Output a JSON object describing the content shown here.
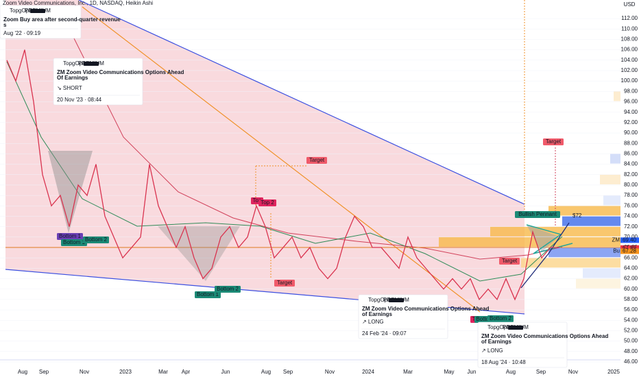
{
  "header": {
    "symbol": "Zoom Video Communications, Inc., 1D, NASDAQ, Heikin Ashi",
    "currency": "USD"
  },
  "price_axis": {
    "ylim": [
      45,
      115
    ],
    "yticks": [
      {
        "value": 46,
        "label": "46.00"
      },
      {
        "value": 48,
        "label": "48.00"
      },
      {
        "value": 50,
        "label": "50.00"
      },
      {
        "value": 52,
        "label": "52.00"
      },
      {
        "value": 54,
        "label": "54.00"
      },
      {
        "value": 56,
        "label": "56.00"
      },
      {
        "value": 58,
        "label": "58.00"
      },
      {
        "value": 60,
        "label": "60.00"
      },
      {
        "value": 62,
        "label": "62.00"
      },
      {
        "value": 64,
        "label": "64.00"
      },
      {
        "value": 66,
        "label": "66.00"
      },
      {
        "value": 68,
        "label": "68.00"
      },
      {
        "value": 70,
        "label": "70.00"
      },
      {
        "value": 72,
        "label": "72.00"
      },
      {
        "value": 74,
        "label": "74.00"
      },
      {
        "value": 76,
        "label": "76.00"
      },
      {
        "value": 78,
        "label": "78.00"
      },
      {
        "value": 80,
        "label": "80.00"
      },
      {
        "value": 82,
        "label": "82.00"
      },
      {
        "value": 84,
        "label": "84.00"
      },
      {
        "value": 86,
        "label": "86.00"
      },
      {
        "value": 88,
        "label": "88.00"
      },
      {
        "value": 90,
        "label": "90.00"
      },
      {
        "value": 92,
        "label": "92.00"
      },
      {
        "value": 94,
        "label": "94.00"
      },
      {
        "value": 96,
        "label": "96.00"
      },
      {
        "value": 98,
        "label": "98.00"
      },
      {
        "value": 100,
        "label": "100.00"
      },
      {
        "value": 102,
        "label": "102.00"
      },
      {
        "value": 104,
        "label": "104.00"
      },
      {
        "value": 106,
        "label": "106.00"
      },
      {
        "value": 108,
        "label": "108.00"
      },
      {
        "value": 110,
        "label": "110.00"
      },
      {
        "value": 112,
        "label": "112.00"
      }
    ]
  },
  "time_axis": {
    "labels": [
      "Aug",
      "Sep",
      "Nov",
      "2023",
      "Mar",
      "Apr",
      "Jun",
      "Aug",
      "Sep",
      "Nov",
      "2024",
      "Mar",
      "May",
      "Jun",
      "Aug",
      "Sep",
      "Nov",
      "2025"
    ]
  },
  "price": {
    "closes": [
      104,
      100,
      106,
      96,
      82,
      76,
      78,
      72,
      80,
      78,
      84,
      74,
      70,
      66,
      68,
      70,
      84,
      76,
      72,
      68,
      72,
      66,
      62,
      64,
      70,
      72,
      68,
      70,
      76,
      72,
      66,
      68,
      70,
      66,
      68,
      64,
      62,
      64,
      70,
      74,
      72,
      68,
      68,
      66,
      64,
      70,
      66,
      64,
      62,
      60,
      62,
      60,
      62,
      58,
      60,
      58,
      62,
      58,
      62,
      71,
      66,
      68,
      68
    ]
  },
  "price_tags": [
    {
      "text": "ZM",
      "value": {
        "value": 69.4,
        "label": "69.40"
      }
    },
    {
      "text": "",
      "value": {
        "value": 67.89,
        "label": "67.89"
      }
    },
    {
      "text": "Bu",
      "value": {
        "value": 67.28,
        "label": "67.28"
      }
    }
  ],
  "labels": {
    "bottom1_a": "Bottom 1",
    "bottom1_b": "Bottom 1",
    "bottom2_a": "Bottom 2",
    "top1": "Top",
    "top2": "Top 2",
    "target1": "Target",
    "target2": "Target",
    "bottom1_c": "Bottom 1",
    "bottom2_c": "Bottom 2",
    "target3": "Target",
    "target4": "Target",
    "pennant": "Bullish Pennant",
    "price_target": "$72",
    "top3": "Top",
    "bottom3": "Bottom",
    "bottom2_d": "Bottom 2"
  },
  "cards": [
    {
      "author": "TopgOptions",
      "badge": "PREMIUM",
      "title_lines": [
        "Zoom Buy area after second-quarter revenue",
        "s"
      ],
      "signal": "",
      "date": "Aug '22 · 09:19"
    },
    {
      "author": "TopgOptions",
      "badge": "PREMIUM",
      "title_lines": [
        "ZM Zoom Video Communications Options Ahead",
        "Of Earnings"
      ],
      "signal": "↘ SHORT",
      "date": "20 Nov '23 · 08:44"
    },
    {
      "author": "TopgOptions",
      "badge": "PREMIUM",
      "title_lines": [
        "ZM Zoom Video Communications Options Ahead",
        "of Earnings"
      ],
      "signal": "↗ LONG",
      "date": "24 Feb '24 · 09:07"
    },
    {
      "author": "TopgOptions",
      "badge": "PREMIUM",
      "title_lines": [
        "ZM Zoom Video Communications Options Ahead",
        "of Earnings"
      ],
      "signal": "↗ LONG",
      "date": "18 Aug '24 · 10:48"
    }
  ]
}
